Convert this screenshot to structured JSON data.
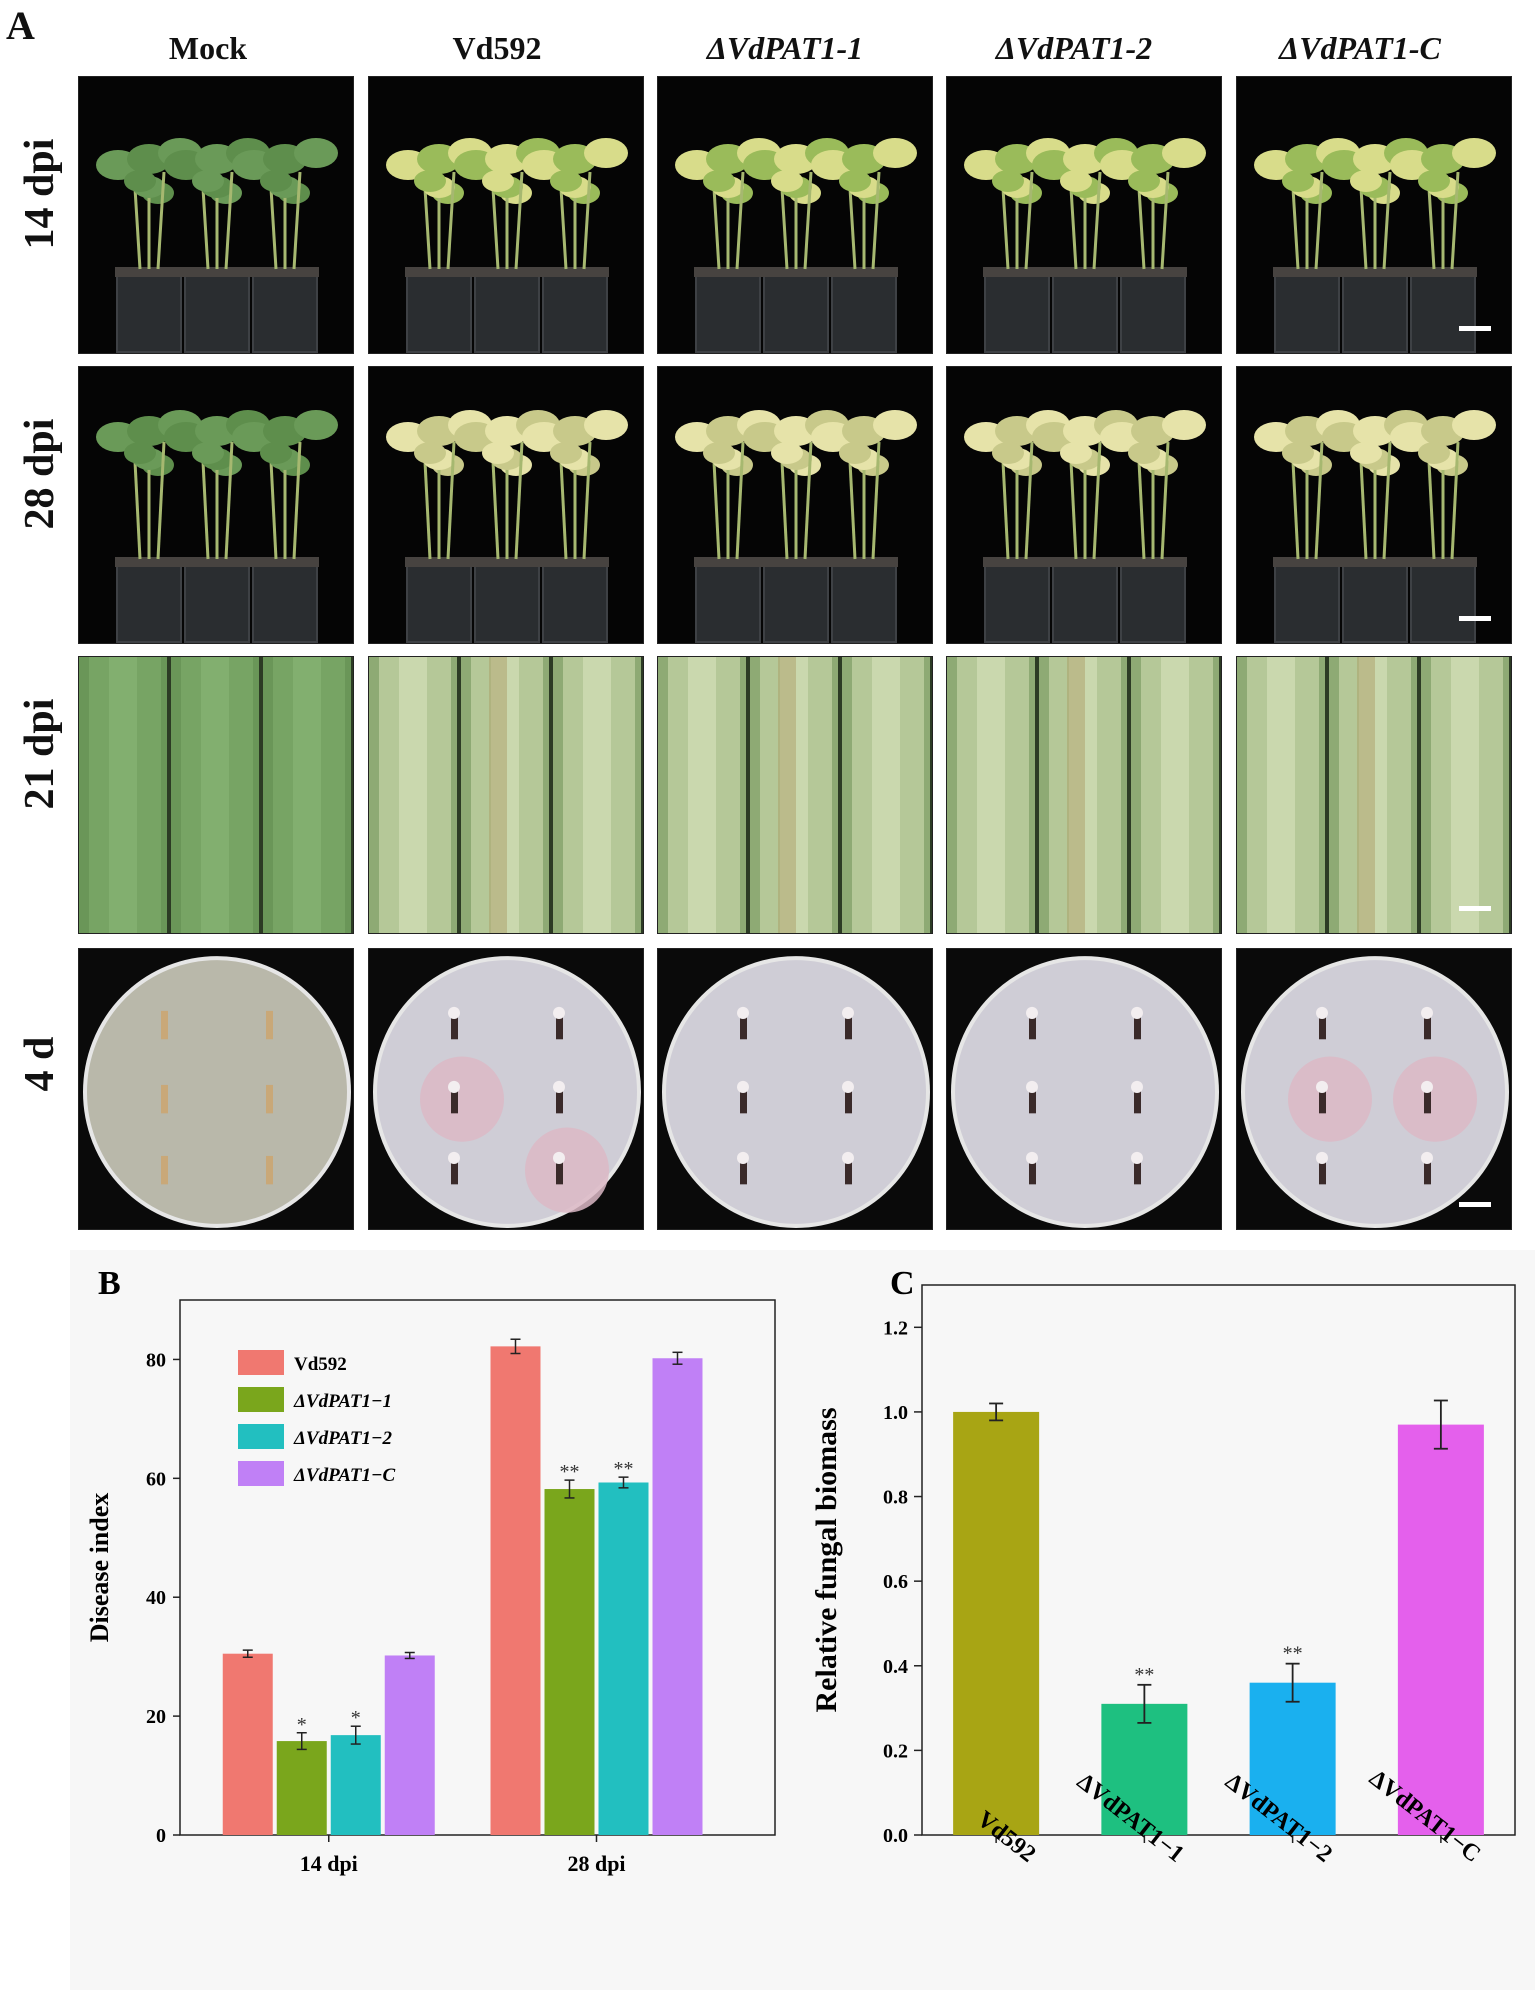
{
  "panel_a": {
    "letter": "A",
    "columns": [
      "Mock",
      "Vd592",
      "ΔVdPAT1-1",
      "ΔVdPAT1-2",
      "ΔVdPAT1-C"
    ],
    "rows": [
      "14 dpi",
      "28 dpi",
      "21 dpi",
      "4 d"
    ]
  },
  "chart_data": [
    {
      "panel": "B",
      "type": "bar",
      "ylabel": "Disease index",
      "categories": [
        "14 dpi",
        "28 dpi"
      ],
      "ylim": [
        0,
        90
      ],
      "yticks": [
        0,
        20,
        40,
        60,
        80
      ],
      "legend": "top-left",
      "series": [
        {
          "name": "Vd592",
          "color": "#f07870",
          "values": [
            30.5,
            82.2
          ],
          "errors": [
            0.6,
            1.2
          ],
          "sig": [
            "",
            ""
          ]
        },
        {
          "name": "ΔVdPAT1−1",
          "color": "#7aa61c",
          "values": [
            15.8,
            58.2
          ],
          "errors": [
            1.4,
            1.5
          ],
          "sig": [
            "*",
            "**"
          ]
        },
        {
          "name": "ΔVdPAT1−2",
          "color": "#22bfc0",
          "values": [
            16.8,
            59.3
          ],
          "errors": [
            1.5,
            0.9
          ],
          "sig": [
            "*",
            "**"
          ]
        },
        {
          "name": "ΔVdPAT1−C",
          "color": "#c080f6",
          "values": [
            30.2,
            80.2
          ],
          "errors": [
            0.5,
            1.0
          ],
          "sig": [
            "",
            ""
          ]
        }
      ]
    },
    {
      "panel": "C",
      "type": "bar",
      "ylabel": "Relative fungal biomass",
      "categories": [
        "Vd592",
        "ΔVdPAT1−1",
        "ΔVdPAT1−2",
        "ΔVdPAT1−C"
      ],
      "ylim": [
        0,
        1.3
      ],
      "yticks": [
        "0.0",
        "0.2",
        "0.4",
        "0.6",
        "0.8",
        "1.0",
        "1.2"
      ],
      "colors": [
        "#a8a514",
        "#1ec080",
        "#1ab0ef",
        "#e460ec"
      ],
      "values": [
        1.0,
        0.31,
        0.36,
        0.97
      ],
      "errors": [
        0.02,
        0.045,
        0.045,
        0.057
      ],
      "sig": [
        "",
        "**",
        "**",
        ""
      ]
    }
  ]
}
